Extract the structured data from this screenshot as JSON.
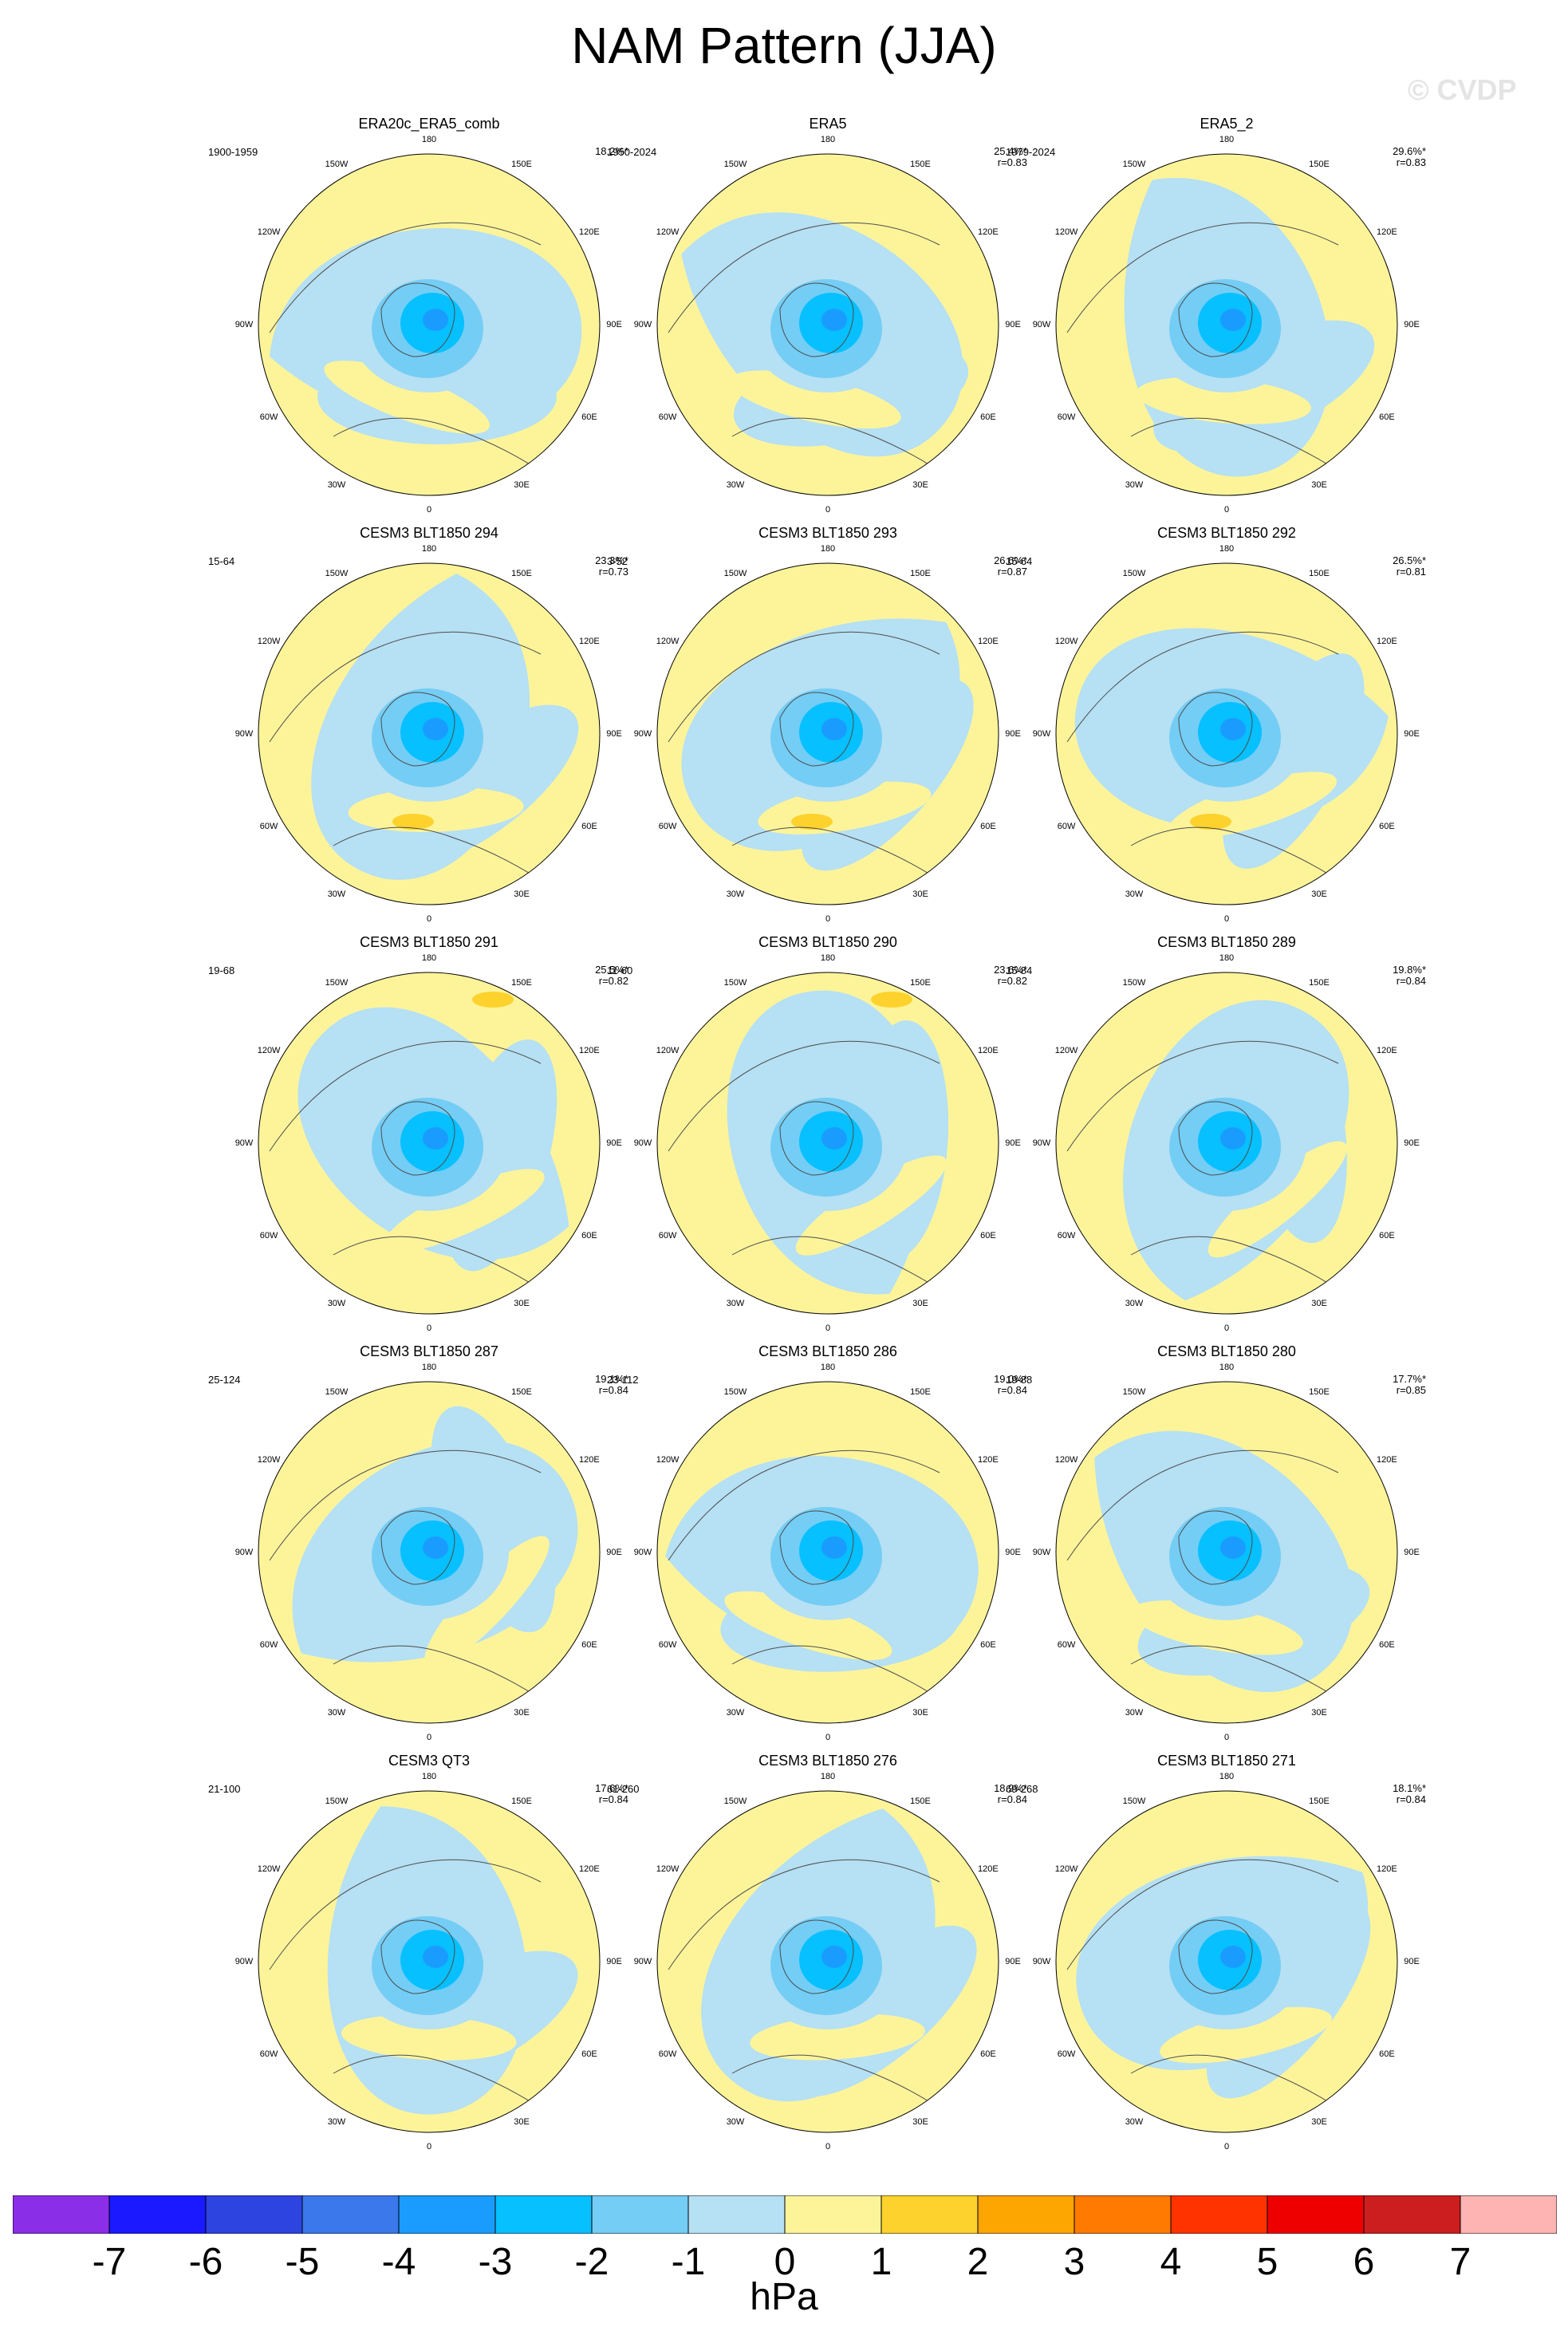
{
  "title": "NAM Pattern (JJA)",
  "credit": "© CVDP",
  "longitude_labels": [
    "180",
    "150E",
    "120E",
    "90E",
    "60E",
    "30E",
    "0",
    "30W",
    "60W",
    "90W",
    "120W",
    "150W"
  ],
  "panels": [
    {
      "title": "ERA20c_ERA5_comb",
      "years": "1900-1959",
      "stats": "18.2%*"
    },
    {
      "title": "ERA5",
      "years": "1950-2024",
      "stats": "25.4%*\nr=0.83"
    },
    {
      "title": "ERA5_2",
      "years": "1979-2024",
      "stats": "29.6%*\nr=0.83"
    },
    {
      "title": "CESM3 BLT1850 294",
      "years": "15-64",
      "stats": "23.3%*\nr=0.73"
    },
    {
      "title": "CESM3 BLT1850 293",
      "years": "3-52",
      "stats": "26.6%*\nr=0.87"
    },
    {
      "title": "CESM3 BLT1850 292",
      "years": "15-64",
      "stats": "26.5%*\nr=0.81"
    },
    {
      "title": "CESM3 BLT1850 291",
      "years": "19-68",
      "stats": "25.5%*\nr=0.82"
    },
    {
      "title": "CESM3 BLT1850 290",
      "years": "11-60",
      "stats": "23.6%*\nr=0.82"
    },
    {
      "title": "CESM3 BLT1850 289",
      "years": "15-84",
      "stats": "19.8%*\nr=0.84"
    },
    {
      "title": "CESM3 BLT1850 287",
      "years": "25-124",
      "stats": "19.1%*\nr=0.84"
    },
    {
      "title": "CESM3 BLT1850 286",
      "years": "23-112",
      "stats": "19.0%*\nr=0.84"
    },
    {
      "title": "CESM3 BLT1850 280",
      "years": "19-88",
      "stats": "17.7%*\nr=0.85"
    },
    {
      "title": "CESM3 QT3",
      "years": "21-100",
      "stats": "17.6%*\nr=0.84"
    },
    {
      "title": "CESM3 BLT1850 276",
      "years": "61-260",
      "stats": "18.9%*\nr=0.84"
    },
    {
      "title": "CESM3 BLT1850 271",
      "years": "69-268",
      "stats": "18.1%*\nr=0.84"
    }
  ],
  "colorbar": {
    "colors": [
      "#8b2ee8",
      "#1a19ff",
      "#2e44e0",
      "#3a78eb",
      "#1a9cff",
      "#06c0ff",
      "#74cdf5",
      "#b6e0f3",
      "#fdf49a",
      "#fdd22d",
      "#fda500",
      "#ff7a00",
      "#ff3300",
      "#ee0000",
      "#cc1e1e",
      "#ffb4b4"
    ],
    "labels": [
      "-7",
      "-6",
      "-5",
      "-4",
      "-3",
      "-2",
      "-1",
      "0",
      "1",
      "2",
      "3",
      "4",
      "5",
      "6",
      "7"
    ],
    "units": "hPa"
  }
}
